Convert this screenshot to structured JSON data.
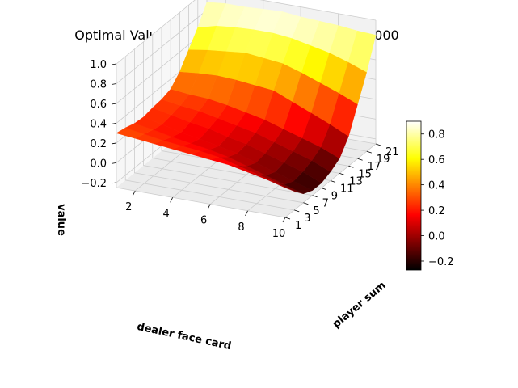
{
  "chart_data": {
    "type": "surface",
    "title": "Optimal Value Function V*(s) for episode 1000000",
    "xlabel": "dealer face card",
    "ylabel": "player sum",
    "zlabel": "value",
    "x": [
      1,
      2,
      3,
      4,
      5,
      6,
      7,
      8,
      9,
      10
    ],
    "y": [
      1,
      3,
      5,
      7,
      9,
      11,
      13,
      15,
      17,
      19,
      21
    ],
    "x_ticks": [
      "2",
      "4",
      "6",
      "8",
      "10"
    ],
    "y_ticks": [
      "1",
      "3",
      "5",
      "7",
      "9",
      "11",
      "13",
      "15",
      "17",
      "19",
      "21"
    ],
    "z_ticks": [
      "−0.2",
      "0.0",
      "0.2",
      "0.4",
      "0.6",
      "0.8",
      "1.0"
    ],
    "zlim": [
      -0.25,
      1.0
    ],
    "colormap": "hot",
    "colorbar": {
      "range": [
        -0.27,
        0.9
      ],
      "ticks": [
        "−0.2",
        "0.0",
        "0.2",
        "0.4",
        "0.6",
        "0.8"
      ]
    },
    "values": [
      [
        0.3,
        0.28,
        0.25,
        0.24,
        0.26,
        0.27,
        0.3,
        0.4,
        0.55,
        0.7,
        0.88
      ],
      [
        0.28,
        0.25,
        0.22,
        0.2,
        0.22,
        0.24,
        0.28,
        0.42,
        0.58,
        0.75,
        0.9
      ],
      [
        0.26,
        0.22,
        0.18,
        0.15,
        0.18,
        0.22,
        0.27,
        0.43,
        0.6,
        0.77,
        0.9
      ],
      [
        0.24,
        0.2,
        0.15,
        0.12,
        0.15,
        0.18,
        0.24,
        0.42,
        0.62,
        0.78,
        0.91
      ],
      [
        0.22,
        0.18,
        0.12,
        0.08,
        0.1,
        0.14,
        0.2,
        0.4,
        0.6,
        0.78,
        0.92
      ],
      [
        0.2,
        0.15,
        0.08,
        0.04,
        0.06,
        0.1,
        0.16,
        0.38,
        0.58,
        0.76,
        0.9
      ],
      [
        0.18,
        0.1,
        0.02,
        -0.02,
        0.0,
        0.04,
        0.1,
        0.3,
        0.52,
        0.72,
        0.89
      ],
      [
        0.14,
        0.05,
        -0.04,
        -0.08,
        -0.06,
        -0.02,
        0.04,
        0.22,
        0.45,
        0.68,
        0.88
      ],
      [
        0.1,
        0.0,
        -0.1,
        -0.14,
        -0.12,
        -0.08,
        -0.02,
        0.14,
        0.38,
        0.62,
        0.86
      ],
      [
        0.05,
        -0.06,
        -0.16,
        -0.2,
        -0.2,
        -0.16,
        -0.1,
        0.05,
        0.3,
        0.55,
        0.85
      ]
    ]
  }
}
